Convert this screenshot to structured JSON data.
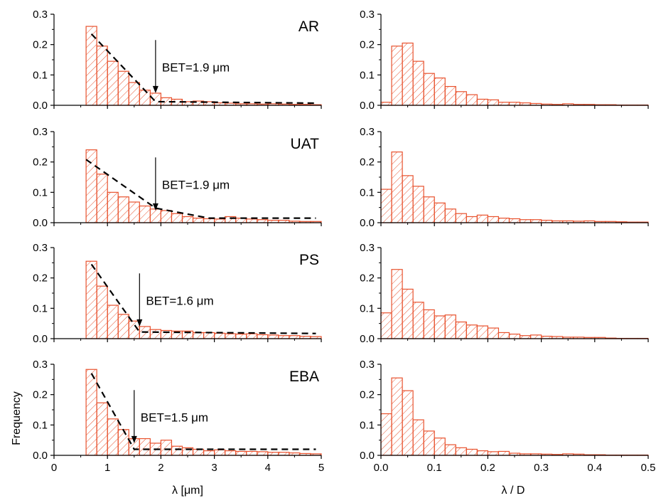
{
  "colors": {
    "bar_edge": "#e8522e",
    "hatch": "#e8522e",
    "fit_line": "#000000",
    "axis": "#000000"
  },
  "labels": {
    "ylabel": "Frequency",
    "xlabel_left": "λ [μm]",
    "xlabel_right": "λ / D"
  },
  "chart_data": [
    {
      "type": "bar",
      "panel": "AR",
      "column": "left",
      "xlim": [
        0,
        5
      ],
      "ylim": [
        0,
        0.3
      ],
      "bin_width": 0.2,
      "bin_start": 0.6,
      "values": [
        0.26,
        0.195,
        0.145,
        0.112,
        0.075,
        0.05,
        0.04,
        0.025,
        0.02,
        0.012,
        0.014,
        0.012,
        0.008,
        0.007,
        0.005,
        0.005,
        0.004,
        0.005,
        0.004,
        0.003,
        0.003,
        0.002
      ],
      "fit_line": [
        [
          0.7,
          0.235
        ],
        [
          1.9,
          0.012
        ],
        [
          4.9,
          0.007
        ]
      ],
      "annotation": {
        "text": "BET=1.9 μm",
        "x": 1.9
      }
    },
    {
      "type": "bar",
      "panel": "",
      "column": "right",
      "xlim": [
        0,
        0.5
      ],
      "ylim": [
        0,
        0.3
      ],
      "bin_width": 0.02,
      "bin_start": 0.0,
      "values": [
        0.01,
        0.195,
        0.205,
        0.145,
        0.105,
        0.09,
        0.062,
        0.045,
        0.035,
        0.02,
        0.018,
        0.01,
        0.01,
        0.008,
        0.006,
        0.004,
        0.003,
        0.005,
        0.003,
        0.003,
        0.002,
        0.002,
        0.001,
        0.001,
        0.001
      ],
      "annotation": null
    },
    {
      "type": "bar",
      "panel": "UAT",
      "column": "left",
      "xlim": [
        0,
        5
      ],
      "ylim": [
        0,
        0.3
      ],
      "bin_width": 0.2,
      "bin_start": 0.6,
      "values": [
        0.24,
        0.16,
        0.1,
        0.085,
        0.068,
        0.055,
        0.045,
        0.04,
        0.03,
        0.02,
        0.015,
        0.013,
        0.012,
        0.02,
        0.015,
        0.012,
        0.01,
        0.008,
        0.008,
        0.005,
        0.004,
        0.004
      ],
      "fit_line": [
        [
          0.6,
          0.208
        ],
        [
          1.9,
          0.048
        ],
        [
          2.9,
          0.015
        ],
        [
          4.9,
          0.015
        ]
      ],
      "annotation": {
        "text": "BET=1.9 μm",
        "x": 1.9
      }
    },
    {
      "type": "bar",
      "panel": "",
      "column": "right",
      "xlim": [
        0,
        0.5
      ],
      "ylim": [
        0,
        0.3
      ],
      "bin_width": 0.02,
      "bin_start": 0.0,
      "values": [
        0.11,
        0.233,
        0.155,
        0.12,
        0.085,
        0.065,
        0.045,
        0.03,
        0.02,
        0.025,
        0.02,
        0.015,
        0.013,
        0.01,
        0.01,
        0.008,
        0.006,
        0.006,
        0.005,
        0.006,
        0.004,
        0.004,
        0.003,
        0.002,
        0.002
      ],
      "annotation": null
    },
    {
      "type": "bar",
      "panel": "PS",
      "column": "left",
      "xlim": [
        0,
        5
      ],
      "ylim": [
        0,
        0.3
      ],
      "bin_width": 0.2,
      "bin_start": 0.6,
      "values": [
        0.255,
        0.173,
        0.11,
        0.08,
        0.058,
        0.04,
        0.03,
        0.027,
        0.025,
        0.025,
        0.02,
        0.02,
        0.018,
        0.016,
        0.015,
        0.016,
        0.013,
        0.012,
        0.01,
        0.01,
        0.008,
        0.007
      ],
      "fit_line": [
        [
          0.7,
          0.245
        ],
        [
          1.6,
          0.022
        ],
        [
          4.9,
          0.017
        ]
      ],
      "annotation": {
        "text": "BET=1.6 μm",
        "x": 1.6
      }
    },
    {
      "type": "bar",
      "panel": "",
      "column": "right",
      "xlim": [
        0,
        0.5
      ],
      "ylim": [
        0,
        0.3
      ],
      "bin_width": 0.02,
      "bin_start": 0.0,
      "values": [
        0.085,
        0.228,
        0.163,
        0.12,
        0.095,
        0.075,
        0.078,
        0.055,
        0.045,
        0.042,
        0.035,
        0.02,
        0.015,
        0.01,
        0.012,
        0.008,
        0.007,
        0.005,
        0.005,
        0.004,
        0.004,
        0.002,
        0.001,
        0.001,
        0.001
      ],
      "annotation": null
    },
    {
      "type": "bar",
      "panel": "EBA",
      "column": "left",
      "xlim": [
        0,
        5
      ],
      "ylim": [
        0,
        0.3
      ],
      "bin_width": 0.2,
      "bin_start": 0.6,
      "values": [
        0.283,
        0.173,
        0.12,
        0.085,
        0.055,
        0.055,
        0.04,
        0.05,
        0.03,
        0.025,
        0.02,
        0.015,
        0.018,
        0.015,
        0.013,
        0.013,
        0.012,
        0.01,
        0.01,
        0.008,
        0.006,
        0.005
      ],
      "fit_line": [
        [
          0.7,
          0.27
        ],
        [
          1.5,
          0.02
        ],
        [
          4.9,
          0.02
        ]
      ],
      "annotation": {
        "text": "BET=1.5 μm",
        "x": 1.5
      }
    },
    {
      "type": "bar",
      "panel": "",
      "column": "right",
      "xlim": [
        0,
        0.5
      ],
      "ylim": [
        0,
        0.3
      ],
      "bin_width": 0.02,
      "bin_start": 0.0,
      "values": [
        0.137,
        0.255,
        0.213,
        0.117,
        0.08,
        0.057,
        0.035,
        0.025,
        0.02,
        0.015,
        0.012,
        0.013,
        0.007,
        0.005,
        0.005,
        0.004,
        0.003,
        0.005,
        0.004,
        0.002,
        0.002,
        0.001,
        0.001,
        0.001,
        0.001
      ],
      "annotation": null
    }
  ],
  "axes": {
    "left_xticks": [
      "0",
      "1",
      "2",
      "3",
      "4",
      "5"
    ],
    "right_xticks": [
      "0.0",
      "0.1",
      "0.2",
      "0.3",
      "0.4",
      "0.5"
    ],
    "yticks": [
      "0.0",
      "0.1",
      "0.2",
      "0.3"
    ]
  }
}
